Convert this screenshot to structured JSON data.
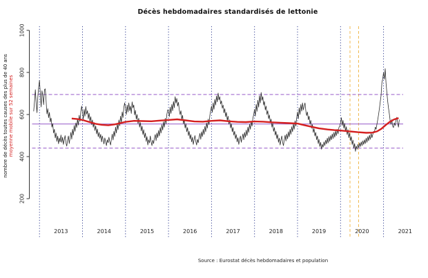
{
  "chart_data": {
    "type": "line",
    "title": "Décès hebdomadaires standardisés de lettonie",
    "ylabel_line1": "nombre de décès toutes causes des plus de 40 ans",
    "ylabel_line2": "moyenne mobile sur 52 semaines",
    "source": "Source : Eurostat décès hebdomadaires et population",
    "y_ticks": [
      200,
      400,
      600,
      800,
      1000
    ],
    "y_axis_range": [
      200,
      1000
    ],
    "x_year_labels": [
      "2013",
      "2014",
      "2015",
      "2016",
      "2017",
      "2018",
      "2019",
      "2020",
      "2021"
    ],
    "year_gridlines": [
      2013,
      2014,
      2015,
      2016,
      2017,
      2018,
      2019,
      2020,
      2021
    ],
    "event_lines_x": [
      2020.22,
      2020.42
    ],
    "reference_lines": {
      "mean": 555,
      "upper_dashed": 695,
      "lower_dashed": 440
    },
    "weekly_series": {
      "name": "décès hebdomadaires",
      "start_year": 2012,
      "start_week": 46,
      "weeks_per_year": 52,
      "values": [
        615,
        662,
        718,
        655,
        609,
        684,
        730,
        762,
        700,
        636,
        713,
        690,
        647,
        718,
        722,
        664,
        603,
        628,
        585,
        610,
        565,
        583,
        540,
        557,
        512,
        530,
        489,
        512,
        472,
        498,
        461,
        488,
        470,
        503,
        468,
        492,
        458,
        480,
        500,
        465,
        450,
        478,
        498,
        462,
        488,
        515,
        483,
        530,
        502,
        548,
        520,
        560,
        538,
        578,
        550,
        596,
        568,
        615,
        640,
        610,
        578,
        624,
        592,
        638,
        602,
        618,
        580,
        606,
        568,
        590,
        552,
        574,
        540,
        562,
        524,
        546,
        508,
        531,
        494,
        515,
        487,
        506,
        470,
        498,
        478,
        460,
        489,
        472,
        452,
        480,
        466,
        492,
        471,
        455,
        483,
        507,
        479,
        520,
        496,
        540,
        512,
        556,
        528,
        574,
        546,
        592,
        562,
        612,
        586,
        634,
        655,
        630,
        600,
        645,
        612,
        655,
        618,
        640,
        605,
        660,
        632,
        645,
        598,
        620,
        578,
        600,
        558,
        582,
        540,
        562,
        522,
        545,
        505,
        528,
        490,
        512,
        472,
        495,
        455,
        480,
        465,
        498,
        470,
        452,
        478,
        462,
        488,
        505,
        476,
        512,
        490,
        524,
        498,
        538,
        512,
        552,
        526,
        566,
        540,
        582,
        556,
        600,
        622,
        620,
        590,
        635,
        605,
        648,
        618,
        662,
        632,
        685,
        655,
        676,
        640,
        658,
        622,
        600,
        618,
        578,
        596,
        556,
        575,
        536,
        556,
        518,
        538,
        500,
        520,
        484,
        505,
        470,
        492,
        458,
        480,
        500,
        472,
        455,
        482,
        466,
        492,
        510,
        482,
        518,
        495,
        530,
        505,
        544,
        518,
        560,
        535,
        578,
        552,
        596,
        618,
        640,
        610,
        655,
        625,
        672,
        645,
        688,
        660,
        702,
        670,
        685,
        650,
        665,
        630,
        645,
        608,
        628,
        590,
        610,
        572,
        592,
        554,
        574,
        536,
        556,
        518,
        538,
        502,
        520,
        485,
        505,
        470,
        490,
        458,
        480,
        498,
        468,
        490,
        508,
        480,
        515,
        492,
        526,
        500,
        540,
        515,
        554,
        530,
        568,
        545,
        582,
        600,
        625,
        592,
        648,
        615,
        668,
        635,
        690,
        655,
        705,
        668,
        685,
        645,
        662,
        622,
        640,
        600,
        618,
        580,
        598,
        560,
        578,
        540,
        558,
        520,
        538,
        502,
        520,
        485,
        505,
        468,
        488,
        455,
        478,
        498,
        468,
        452,
        480,
        502,
        474,
        508,
        484,
        518,
        494,
        530,
        506,
        542,
        518,
        556,
        530,
        570,
        545,
        585,
        612,
        580,
        632,
        600,
        648,
        616,
        655,
        622,
        640,
        655,
        618,
        595,
        612,
        575,
        592,
        555,
        572,
        535,
        552,
        515,
        532,
        498,
        515,
        480,
        498,
        462,
        482,
        448,
        468,
        435,
        458,
        445,
        470,
        452,
        478,
        460,
        488,
        465,
        495,
        472,
        500,
        480,
        508,
        486,
        515,
        492,
        522,
        500,
        530,
        508,
        538,
        545,
        560,
        585,
        548,
        572,
        535,
        558,
        520,
        542,
        505,
        528,
        490,
        512,
        475,
        495,
        458,
        478,
        440,
        462,
        425,
        450,
        435,
        458,
        442,
        465,
        448,
        470,
        452,
        475,
        458,
        480,
        462,
        488,
        468,
        495,
        475,
        502,
        482,
        510,
        490,
        505,
        520,
        516,
        540,
        530,
        554,
        575,
        600,
        628,
        660,
        690,
        751,
        770,
        800,
        768,
        818,
        750,
        705,
        663,
        630,
        603,
        570,
        554,
        576,
        545,
        538,
        560,
        548,
        572,
        587,
        560,
        540,
        575
      ]
    },
    "moving_average": {
      "name": "moyenne mobile sur 52 semaines",
      "points": [
        [
          2013.75,
          581
        ],
        [
          2013.9,
          578
        ],
        [
          2014.0,
          574
        ],
        [
          2014.15,
          565
        ],
        [
          2014.3,
          556
        ],
        [
          2014.45,
          551
        ],
        [
          2014.6,
          549
        ],
        [
          2014.75,
          553
        ],
        [
          2014.9,
          560
        ],
        [
          2015.0,
          565
        ],
        [
          2015.2,
          570
        ],
        [
          2015.4,
          569
        ],
        [
          2015.6,
          568
        ],
        [
          2015.8,
          571
        ],
        [
          2016.0,
          574
        ],
        [
          2016.2,
          577
        ],
        [
          2016.4,
          572
        ],
        [
          2016.6,
          567
        ],
        [
          2016.8,
          566
        ],
        [
          2017.0,
          570
        ],
        [
          2017.2,
          572
        ],
        [
          2017.4,
          568
        ],
        [
          2017.6,
          565
        ],
        [
          2017.8,
          564
        ],
        [
          2018.0,
          567
        ],
        [
          2018.2,
          566
        ],
        [
          2018.4,
          563
        ],
        [
          2018.6,
          561
        ],
        [
          2018.8,
          559
        ],
        [
          2019.0,
          557
        ],
        [
          2019.15,
          550
        ],
        [
          2019.3,
          543
        ],
        [
          2019.5,
          534
        ],
        [
          2019.7,
          529
        ],
        [
          2019.85,
          526
        ],
        [
          2020.0,
          524
        ],
        [
          2020.2,
          520
        ],
        [
          2020.4,
          516
        ],
        [
          2020.6,
          513
        ],
        [
          2020.75,
          514
        ],
        [
          2020.85,
          520
        ],
        [
          2020.95,
          532
        ],
        [
          2021.05,
          550
        ],
        [
          2021.15,
          566
        ],
        [
          2021.25,
          577
        ],
        [
          2021.35,
          583
        ]
      ]
    },
    "colors": {
      "weekly_line": "#2b2b2b",
      "moving_average_line": "#d42020",
      "reference_purple": "#9457c8",
      "year_gridline": "#27348b",
      "event_line_orange": "#f0b94f",
      "axis": "#333333"
    },
    "layout": {
      "grid": "vertical dotted per year",
      "legend": "none"
    }
  }
}
